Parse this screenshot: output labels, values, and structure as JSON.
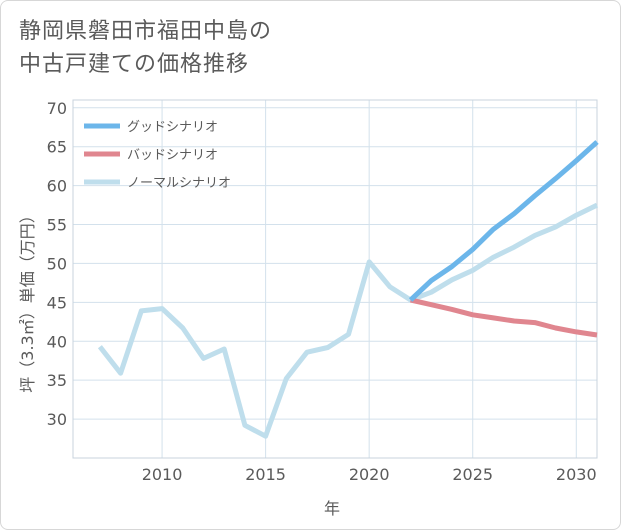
{
  "title": {
    "line1": "静岡県磐田市福田中島の",
    "line2": "中古戸建ての価格推移"
  },
  "chart_data": {
    "type": "line",
    "xlabel": "年",
    "ylabel": "坪（3.3㎡）単価（万円）",
    "xlim": [
      2005.7,
      2031
    ],
    "ylim": [
      25,
      71
    ],
    "x_ticks": [
      2010,
      2015,
      2020,
      2025,
      2030
    ],
    "y_ticks": [
      30,
      35,
      40,
      45,
      50,
      55,
      60,
      65,
      70
    ],
    "grid": true,
    "legend_position": "top-left",
    "series": [
      {
        "name": "グッドシナリオ",
        "color": "#6cb6ea",
        "x": [
          2022,
          2023,
          2024,
          2025,
          2026,
          2027,
          2028,
          2029,
          2030,
          2031
        ],
        "y": [
          45.3,
          47.8,
          49.6,
          51.8,
          54.4,
          56.4,
          58.7,
          60.9,
          63.2,
          65.6
        ]
      },
      {
        "name": "バッドシナリオ",
        "color": "#e0868f",
        "x": [
          2022,
          2023,
          2024,
          2025,
          2026,
          2027,
          2028,
          2029,
          2030,
          2031
        ],
        "y": [
          45.3,
          44.7,
          44.1,
          43.4,
          43.0,
          42.6,
          42.4,
          41.7,
          41.2,
          40.8
        ]
      },
      {
        "name": "ノーマルシナリオ",
        "color": "#bfdeec",
        "x": [
          2007,
          2008,
          2009,
          2010,
          2011,
          2012,
          2013,
          2014,
          2015,
          2016,
          2017,
          2018,
          2019,
          2020,
          2021,
          2022,
          2023,
          2024,
          2025,
          2026,
          2027,
          2028,
          2029,
          2030,
          2031
        ],
        "y": [
          39.3,
          35.9,
          43.9,
          44.2,
          41.7,
          37.8,
          39.0,
          29.2,
          27.8,
          35.2,
          38.6,
          39.2,
          40.9,
          50.2,
          47.0,
          45.3,
          46.3,
          47.9,
          49.1,
          50.8,
          52.1,
          53.6,
          54.7,
          56.2,
          57.5
        ]
      }
    ]
  }
}
